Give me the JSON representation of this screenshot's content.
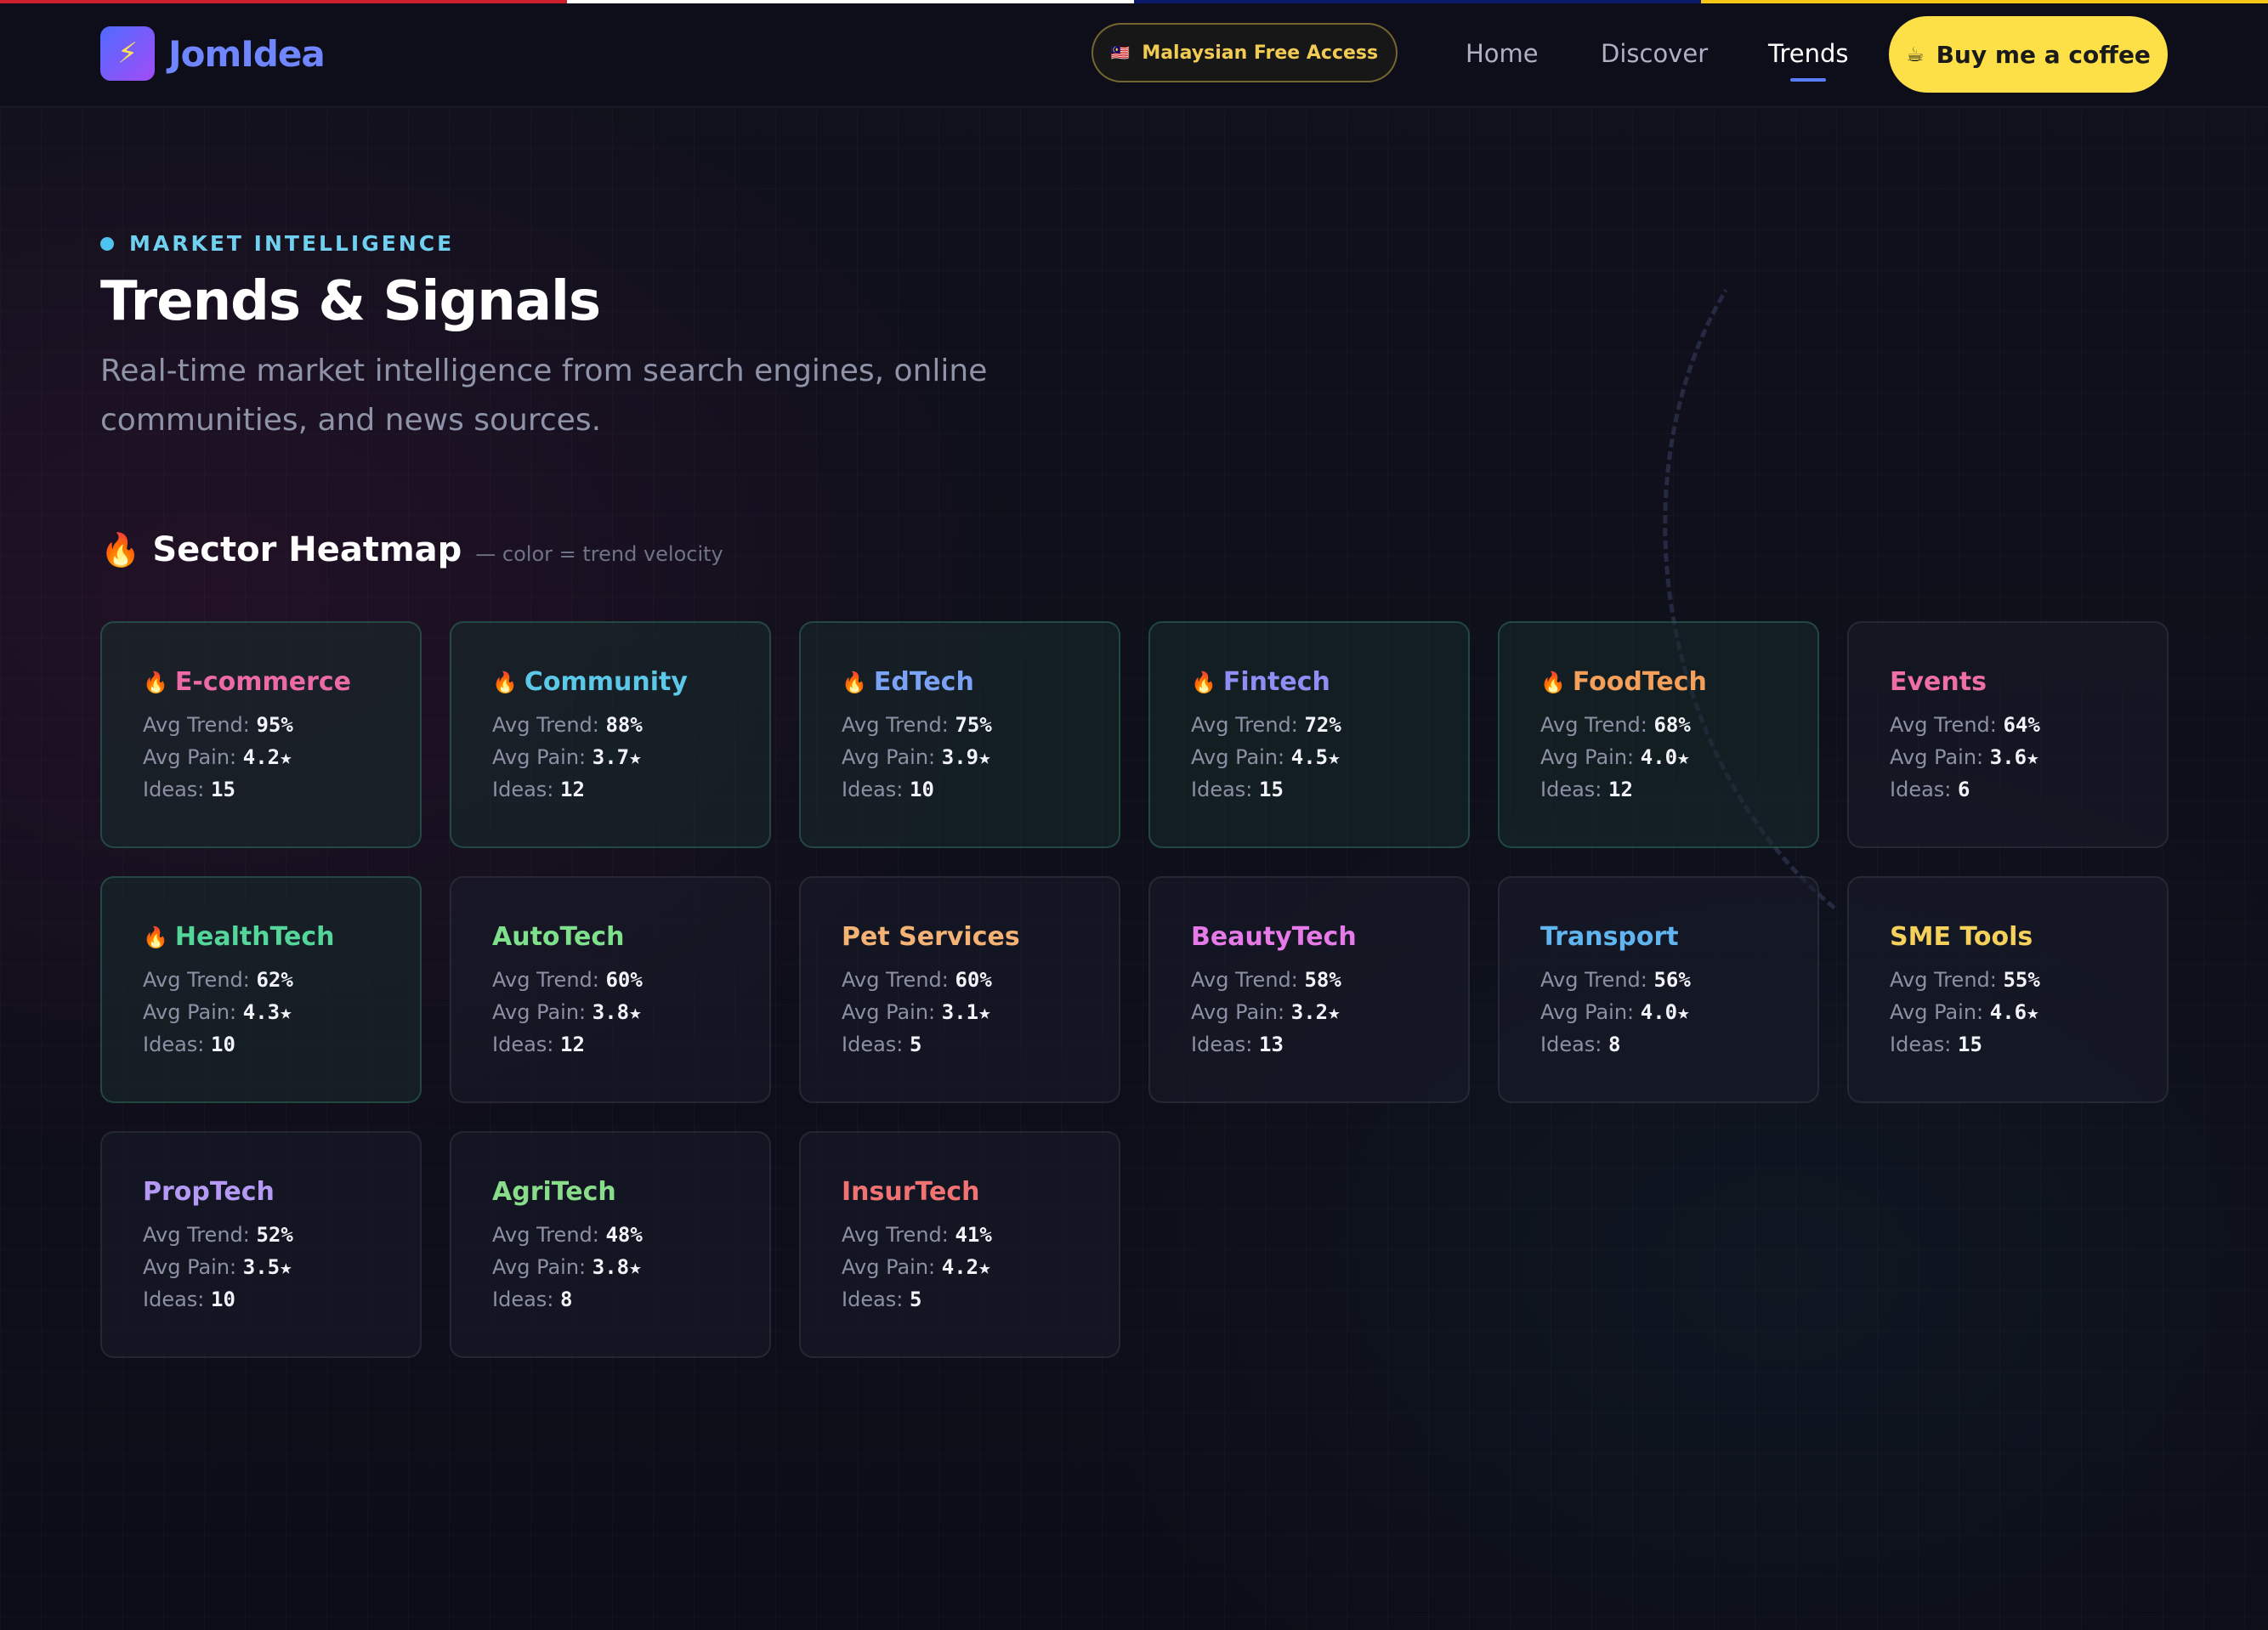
{
  "stripe_colors": [
    "#cc1f2e",
    "#ffffff",
    "#0b1a6b",
    "#f5c518"
  ],
  "brand": {
    "name": "JomIdea",
    "logo_icon": "lightning-icon",
    "logo_glyph": "⚡"
  },
  "header": {
    "badge": {
      "flag_glyph": "🇲🇾",
      "label": "Malaysian Free Access"
    },
    "nav": [
      {
        "label": "Home",
        "active": false
      },
      {
        "label": "Discover",
        "active": false
      },
      {
        "label": "Trends",
        "active": true
      }
    ],
    "cta": {
      "icon_glyph": "☕",
      "label": "Buy me a coffee",
      "color": "#fde047"
    }
  },
  "hero": {
    "eyebrow": "MARKET INTELLIGENCE",
    "title": "Trends & Signals",
    "subtitle": "Real-time market intelligence from search engines, online communities, and news sources."
  },
  "heatmap": {
    "fire_glyph": "🔥",
    "title": "Sector Heatmap",
    "note": "— color = trend velocity",
    "labels": {
      "trend": "Avg Trend: ",
      "pain": "Avg Pain: ",
      "ideas": "Ideas: "
    },
    "sectors": [
      {
        "name": "E-commerce",
        "hot": true,
        "color": "#ec6aa6",
        "trend": "95%",
        "pain": "4.2★",
        "ideas": "15"
      },
      {
        "name": "Community",
        "hot": true,
        "color": "#5cc8e8",
        "trend": "88%",
        "pain": "3.7★",
        "ideas": "12"
      },
      {
        "name": "EdTech",
        "hot": true,
        "color": "#7ba3f5",
        "trend": "75%",
        "pain": "3.9★",
        "ideas": "10"
      },
      {
        "name": "Fintech",
        "hot": true,
        "color": "#8f8ef5",
        "trend": "72%",
        "pain": "4.5★",
        "ideas": "15"
      },
      {
        "name": "FoodTech",
        "hot": true,
        "color": "#f4a05a",
        "trend": "68%",
        "pain": "4.0★",
        "ideas": "12"
      },
      {
        "name": "Events",
        "hot": false,
        "color": "#ee6fa6",
        "trend": "64%",
        "pain": "3.6★",
        "ideas": "6"
      },
      {
        "name": "HealthTech",
        "hot": true,
        "color": "#54d59a",
        "trend": "62%",
        "pain": "4.3★",
        "ideas": "10"
      },
      {
        "name": "AutoTech",
        "hot": false,
        "color": "#7fe08c",
        "trend": "60%",
        "pain": "3.8★",
        "ideas": "12"
      },
      {
        "name": "Pet Services",
        "hot": false,
        "color": "#f4b375",
        "trend": "60%",
        "pain": "3.1★",
        "ideas": "5"
      },
      {
        "name": "BeautyTech",
        "hot": false,
        "color": "#e57ae8",
        "trend": "58%",
        "pain": "3.2★",
        "ideas": "13"
      },
      {
        "name": "Transport",
        "hot": false,
        "color": "#60b4ef",
        "trend": "56%",
        "pain": "4.0★",
        "ideas": "8"
      },
      {
        "name": "SME Tools",
        "hot": false,
        "color": "#f5d05a",
        "trend": "55%",
        "pain": "4.6★",
        "ideas": "15"
      },
      {
        "name": "PropTech",
        "hot": false,
        "color": "#b59af5",
        "trend": "52%",
        "pain": "3.5★",
        "ideas": "10"
      },
      {
        "name": "AgriTech",
        "hot": false,
        "color": "#88dc8a",
        "trend": "48%",
        "pain": "3.8★",
        "ideas": "8"
      },
      {
        "name": "InsurTech",
        "hot": false,
        "color": "#f07272",
        "trend": "41%",
        "pain": "4.2★",
        "ideas": "5"
      }
    ]
  }
}
